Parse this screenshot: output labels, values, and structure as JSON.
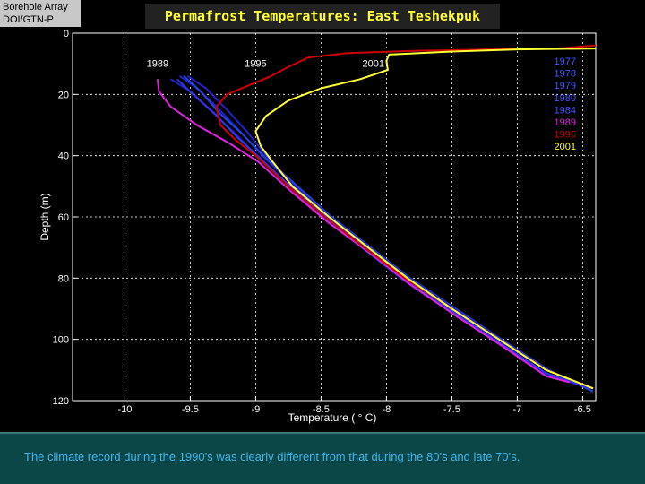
{
  "header": {
    "source_lines": [
      "Borehole Array",
      "DOI/GTN-P"
    ],
    "title": "Permafrost Temperatures:  East Teshekpuk"
  },
  "caption": "The climate record during the 1990’s was clearly different from that during the 80’s and late 70’s.",
  "chart_data": {
    "type": "line",
    "title": "Permafrost Temperatures:  East Teshekpuk",
    "xlabel": "Temperature (  ° C)",
    "ylabel": "Depth (m)",
    "xlim": [
      -10.4,
      -6.4
    ],
    "ylim": [
      0,
      120
    ],
    "y_inverted": true,
    "grid": true,
    "x_ticks": [
      -10,
      -9.5,
      -9,
      -8.5,
      -8,
      -7.5,
      -7,
      -6.5
    ],
    "x_tick_labels": [
      "-10",
      "-9.5",
      "-9",
      "-8.5",
      "-8",
      "-7.5",
      "-7",
      "-6.5"
    ],
    "y_ticks": [
      0,
      20,
      40,
      60,
      80,
      100,
      120
    ],
    "y_tick_labels": [
      "0",
      "20",
      "40",
      "60",
      "80",
      "100",
      "120"
    ],
    "legend_position": "top-right",
    "series": [
      {
        "name": "1977",
        "color": "#2222cc",
        "points": [
          [
            -9.58,
            14
          ],
          [
            -9.45,
            18
          ],
          [
            -9.3,
            24
          ],
          [
            -9.12,
            32
          ],
          [
            -8.95,
            40
          ],
          [
            -8.7,
            50
          ],
          [
            -8.45,
            60
          ],
          [
            -8.15,
            70
          ],
          [
            -7.85,
            80
          ],
          [
            -7.5,
            90
          ],
          [
            -7.15,
            100
          ],
          [
            -6.78,
            110
          ],
          [
            -6.42,
            116
          ]
        ]
      },
      {
        "name": "1978",
        "color": "#2222cc",
        "points": [
          [
            -9.65,
            15
          ],
          [
            -9.5,
            19
          ],
          [
            -9.35,
            25
          ],
          [
            -9.15,
            33
          ],
          [
            -8.97,
            41
          ],
          [
            -8.72,
            51
          ],
          [
            -8.46,
            61
          ],
          [
            -8.16,
            71
          ],
          [
            -7.86,
            81
          ],
          [
            -7.51,
            91
          ],
          [
            -7.16,
            101
          ],
          [
            -6.8,
            111
          ],
          [
            -6.45,
            116
          ]
        ]
      },
      {
        "name": "1979",
        "color": "#2244dd",
        "points": [
          [
            -9.55,
            14
          ],
          [
            -9.42,
            19
          ],
          [
            -9.28,
            26
          ],
          [
            -9.1,
            33
          ],
          [
            -8.94,
            40
          ],
          [
            -8.68,
            50
          ],
          [
            -8.42,
            60
          ],
          [
            -8.12,
            70
          ],
          [
            -7.82,
            80
          ],
          [
            -7.47,
            90
          ],
          [
            -7.12,
            100
          ],
          [
            -6.76,
            110
          ],
          [
            -6.42,
            117
          ]
        ]
      },
      {
        "name": "1980",
        "color": "#3333ee",
        "points": [
          [
            -9.6,
            15
          ],
          [
            -9.48,
            20
          ],
          [
            -9.32,
            26
          ],
          [
            -9.14,
            34
          ],
          [
            -8.96,
            41
          ],
          [
            -8.71,
            51
          ],
          [
            -8.44,
            61
          ],
          [
            -8.14,
            71
          ],
          [
            -7.84,
            81
          ],
          [
            -7.49,
            91
          ],
          [
            -7.14,
            101
          ],
          [
            -6.78,
            111
          ],
          [
            -6.44,
            116
          ]
        ]
      },
      {
        "name": "1984",
        "color": "#2222cc",
        "points": [
          [
            -9.52,
            14
          ],
          [
            -9.38,
            18
          ],
          [
            -9.22,
            25
          ],
          [
            -9.07,
            32
          ],
          [
            -8.92,
            40
          ],
          [
            -8.7,
            50
          ],
          [
            -8.43,
            60
          ],
          [
            -8.13,
            70
          ],
          [
            -7.83,
            80
          ],
          [
            -7.48,
            90
          ],
          [
            -7.13,
            100
          ],
          [
            -6.77,
            110
          ],
          [
            -6.43,
            116
          ]
        ]
      },
      {
        "name": "1989",
        "color": "#dd22dd",
        "points": [
          [
            -9.75,
            15
          ],
          [
            -9.74,
            19
          ],
          [
            -9.65,
            24
          ],
          [
            -9.45,
            30
          ],
          [
            -9.2,
            36
          ],
          [
            -8.98,
            42
          ],
          [
            -8.72,
            52
          ],
          [
            -8.44,
            62
          ],
          [
            -8.12,
            72
          ],
          [
            -7.82,
            82
          ],
          [
            -7.48,
            92
          ],
          [
            -7.12,
            102
          ],
          [
            -6.78,
            112
          ],
          [
            -6.6,
            114
          ]
        ]
      },
      {
        "name": "1995",
        "color": "#cc0000",
        "points": [
          [
            -6.4,
            4
          ],
          [
            -6.7,
            5
          ],
          [
            -7.2,
            5.3
          ],
          [
            -7.8,
            5.8
          ],
          [
            -8.3,
            6.5
          ],
          [
            -8.6,
            8
          ],
          [
            -8.75,
            11
          ],
          [
            -8.88,
            14
          ],
          [
            -9.05,
            17
          ],
          [
            -9.22,
            20
          ],
          [
            -9.3,
            24
          ],
          [
            -9.27,
            30
          ],
          [
            -9.15,
            35
          ],
          [
            -9.0,
            40
          ],
          [
            -8.75,
            50
          ],
          [
            -8.47,
            60
          ],
          [
            -8.17,
            70
          ],
          [
            -7.86,
            80
          ],
          [
            -7.5,
            90
          ],
          [
            -7.14,
            100
          ],
          [
            -6.78,
            110
          ],
          [
            -6.42,
            116
          ]
        ]
      },
      {
        "name": "2001",
        "color": "#ffff33",
        "points": [
          [
            -6.4,
            5
          ],
          [
            -7.0,
            5.3
          ],
          [
            -7.5,
            6
          ],
          [
            -7.98,
            7
          ],
          [
            -8.0,
            9
          ],
          [
            -7.99,
            12
          ],
          [
            -8.2,
            15
          ],
          [
            -8.5,
            18
          ],
          [
            -8.75,
            22
          ],
          [
            -8.92,
            27
          ],
          [
            -9.0,
            32
          ],
          [
            -8.96,
            37
          ],
          [
            -8.87,
            42
          ],
          [
            -8.72,
            50
          ],
          [
            -8.44,
            60
          ],
          [
            -8.14,
            70
          ],
          [
            -7.84,
            80
          ],
          [
            -7.5,
            90
          ],
          [
            -7.14,
            100
          ],
          [
            -6.78,
            110
          ],
          [
            -6.42,
            116
          ]
        ]
      }
    ],
    "annotations": [
      {
        "text": "1989",
        "x": -9.75,
        "y": 11
      },
      {
        "text": "1995",
        "x": -9.0,
        "y": 11
      },
      {
        "text": "2001",
        "x": -8.1,
        "y": 11
      }
    ]
  }
}
